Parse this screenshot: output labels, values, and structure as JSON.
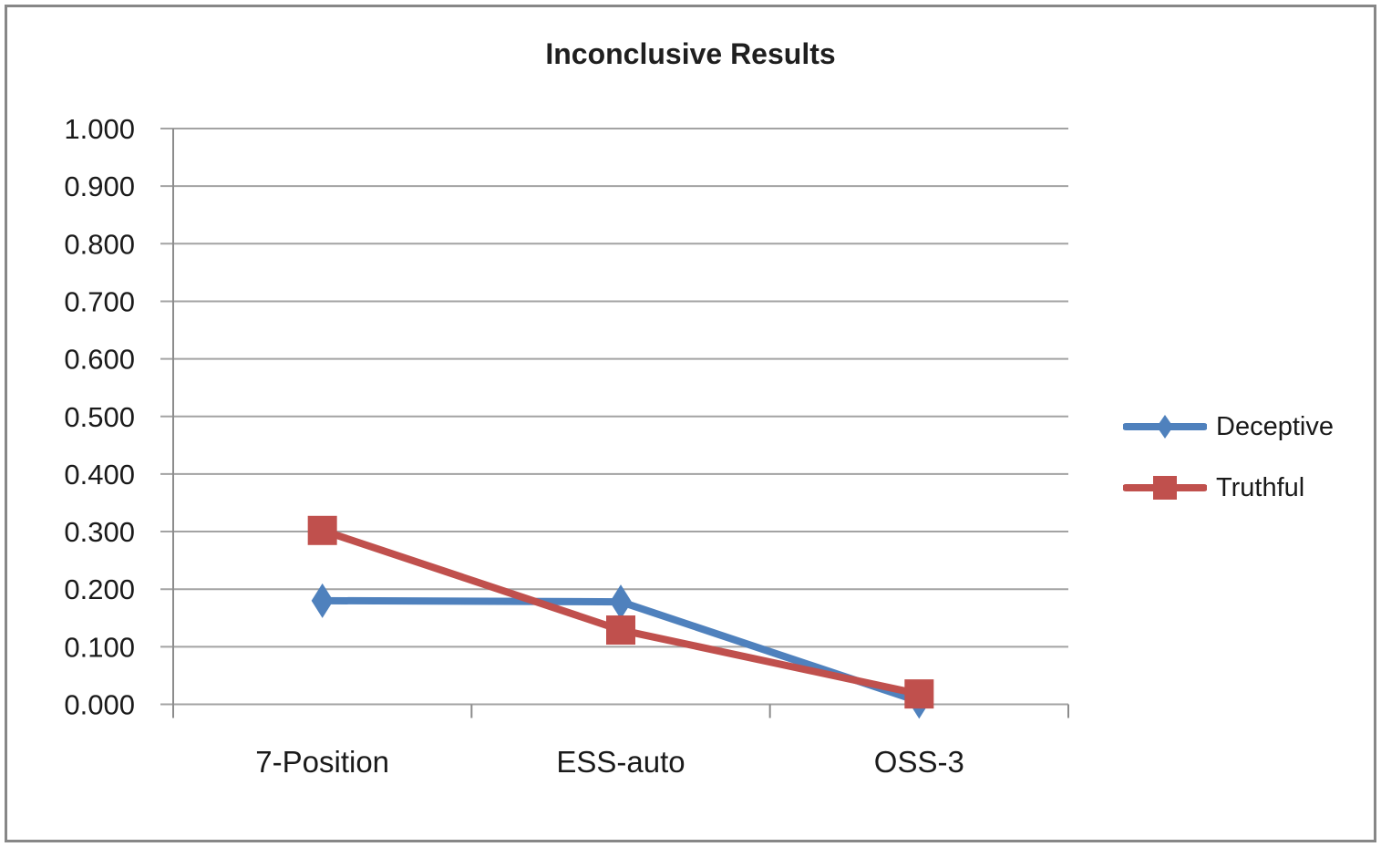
{
  "frame": {
    "background": "#ffffff",
    "border_color": "#878787"
  },
  "chart_data": {
    "type": "line",
    "title": "Inconclusive Results",
    "categories": [
      "7-Position",
      "ESS-auto",
      "OSS-3"
    ],
    "series": [
      {
        "name": "Deceptive",
        "color": "#4f81bd",
        "marker": "diamond",
        "values": [
          0.18,
          0.178,
          0.005
        ]
      },
      {
        "name": "Truthful",
        "color": "#c0504d",
        "marker": "square",
        "values": [
          0.302,
          0.129,
          0.018
        ]
      }
    ],
    "ylim": [
      0.0,
      1.0
    ],
    "y_tick_step": 0.1,
    "y_tick_labels": [
      "1.000",
      "0.900",
      "0.800",
      "0.700",
      "0.600",
      "0.500",
      "0.400",
      "0.300",
      "0.200",
      "0.100",
      "0.000"
    ],
    "grid": "horizontal",
    "legend_position": "right",
    "colors": {
      "gridline": "#a3a3a3",
      "axis": "#8c8c8c",
      "tick_text": "#1a1a1a",
      "title_text": "#1f1f1f"
    }
  }
}
